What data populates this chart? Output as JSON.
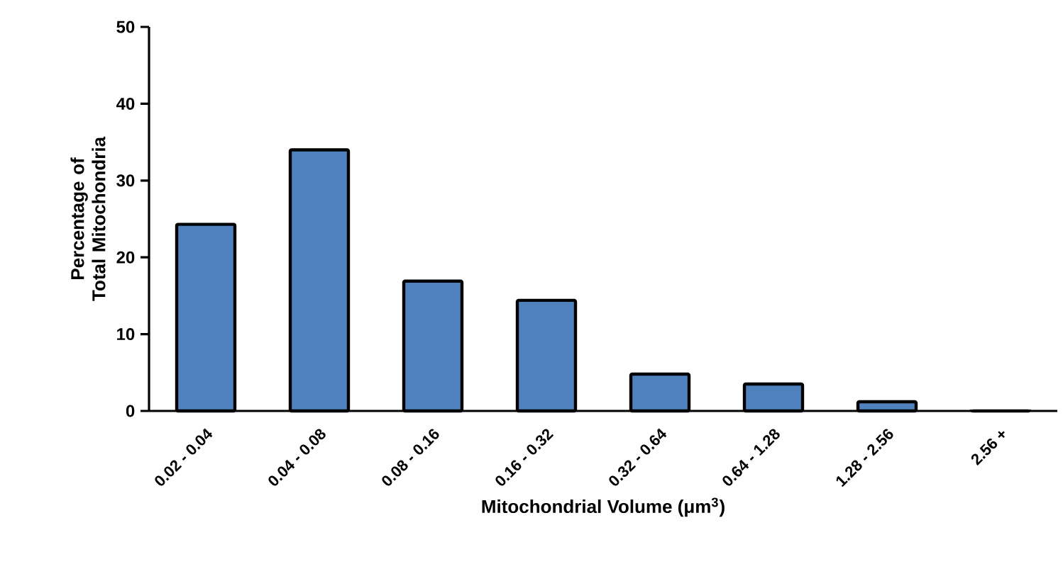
{
  "chart_data": {
    "type": "bar",
    "xlabel": "Mitochondrial Volume (μm$^{3}$)",
    "ylabel": "Percentage of Total Mitochondria",
    "categories": [
      "0.02 - 0.04",
      "0.04 - 0.08",
      "0.08 - 0.16",
      "0.16 - 0.32",
      "0.32 - 0.64",
      "0.64 - 1.28",
      "1.28 - 2.56",
      "2.56 +"
    ],
    "values": [
      24.3,
      34.0,
      16.9,
      14.4,
      4.8,
      3.5,
      1.2,
      0
    ],
    "color": "#4f81bd",
    "ylim": [
      0,
      50
    ],
    "yticks": [
      0,
      10,
      20,
      30,
      40,
      50
    ],
    "grid": false
  }
}
